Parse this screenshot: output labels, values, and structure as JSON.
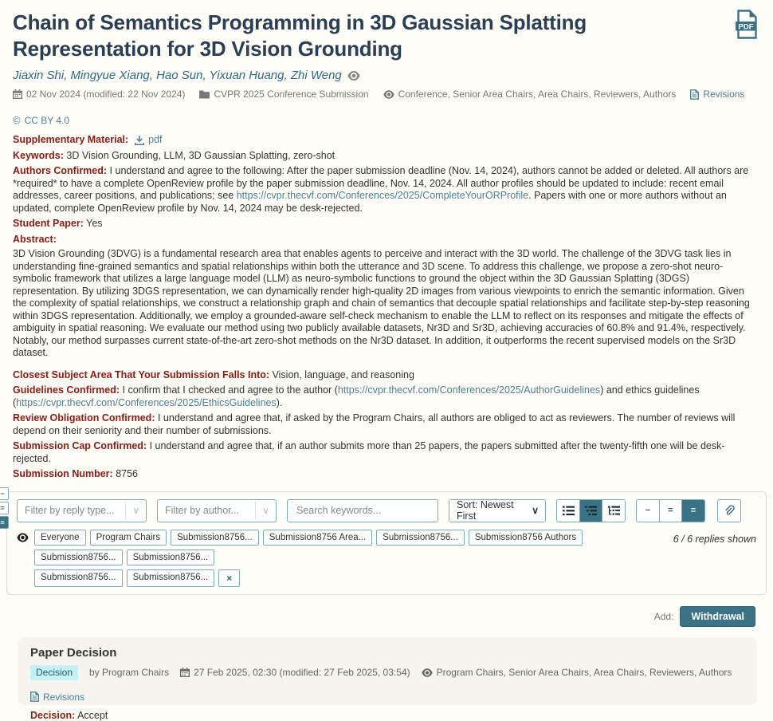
{
  "colors": {
    "accent": "#3b7386",
    "link": "#4d8093",
    "field_label": "#8c1b13",
    "badge_bg": "#c4f1f5",
    "card_bg": "#f5f4ef"
  },
  "icons": {
    "chevron_down": "∨",
    "close": "×",
    "density": [
      "−",
      "=",
      "≡"
    ],
    "pdf_text": "PDF"
  },
  "header": {
    "title": "Chain of Semantics Programming in 3D Gaussian Splatting Representation for 3D Vision Grounding",
    "authors": "Jiaxin Shi, Mingyue Xiang, Hao Sun, Yixuan Huang, Zhi Weng",
    "meta": {
      "date": "02 Nov 2024 (modified: 22 Nov 2024)",
      "venue": "CVPR 2025 Conference Submission",
      "visibility": "Conference, Senior Area Chairs, Area Chairs, Reviewers, Authors",
      "revisions_label": "Revisions",
      "license": "CC BY 4.0"
    }
  },
  "fields": {
    "supplementary": {
      "label": "Supplementary Material:",
      "link": "pdf"
    },
    "keywords": {
      "label": "Keywords:",
      "value": "3D Vision Grounding, LLM, 3D Gaussian Splatting, zero-shot"
    },
    "authors_confirmed": {
      "label": "Authors Confirmed:",
      "before": "I understand and agree to the following: After the paper submission deadline (Nov. 14, 2024), authors cannot be added or deleted. All authors are *required* to have a complete OpenReview profile by the paper submission deadline, Nov. 14, 2024. All author profiles should be updated to include: recent email addresses, career positions, and publications; see ",
      "link": "https://cvpr.thecvf.com/Conferences/2025/CompleteYourORProfile",
      "after": ". Papers with one or more authors without an updated, complete OpenReview profile by Nov. 14, 2024 may be desk-rejected."
    },
    "student_paper": {
      "label": "Student Paper:",
      "value": "Yes"
    },
    "abstract": {
      "label": "Abstract:",
      "value": "3D Vision Grounding (3DVG) is a fundamental research area that enables agents to perceive and interact with the 3D world. The challenge of the 3DVG task lies in understanding fine-grained semantics and spatial relationships within both the utterance and 3D scene. To address this challenge, we propose a zero-shot neuro-symbolic framework that utilizes a large language model (LLM) as neuro-symbolic functions to ground the object within the 3D Gaussian Splatting (3DGS) representation. By utilizing 3DGS representation, we can dynamically render high-quality 2D images from various viewpoints to enrich the semantic information. Given the complexity of spatial relationships, we construct a relationship graph and chain of semantics that decouple spatial relationships and facilitate step-by-step reasoning within 3DGS representation. Additionally, we employ a grounded-aware self-check mechanism to enable the LLM to reflect on its responses and mitigate the effects of ambiguity in spatial reasoning. We evaluate our method using two publicly available datasets, Nr3D and Sr3D, achieving accuracies of 60.8% and 91.4%, respectively. Notably, our method surpasses current state-of-the-art zero-shot methods on the Nr3D dataset. In addition, it outperforms the recent supervised models on the Sr3D dataset."
    },
    "subject_area": {
      "label": "Closest Subject Area That Your Submission Falls Into:",
      "value": "Vision, language, and reasoning"
    },
    "guidelines": {
      "label": "Guidelines Confirmed:",
      "before": "I confirm that I checked and agree to the author (",
      "link1": "https://cvpr.thecvf.com/Conferences/2025/AuthorGuidelines",
      "mid": ") and ethics guidelines (",
      "link2": "https://cvpr.thecvf.com/Conferences/2025/EthicsGuidelines",
      "after": ")."
    },
    "review_obligation": {
      "label": "Review Obligation Confirmed:",
      "value": "I understand and agree that, if asked by the Program Chairs, all authors are obliged to act as reviewers. The number of reviews will depend on their seniority and their number of submissions."
    },
    "submission_cap": {
      "label": "Submission Cap Confirmed:",
      "value": "I understand and agree that, if an author submits more than 25 papers, the papers submitted after the twenty-fifth one will be desk-rejected."
    },
    "submission_number": {
      "label": "Submission Number:",
      "value": "8756"
    }
  },
  "filters": {
    "reply_type_placeholder": "Filter by reply type...",
    "author_placeholder": "Filter by author...",
    "search_placeholder": "Search keywords...",
    "sort_value": "Sort: Newest First",
    "replies_shown": "6 / 6 replies shown",
    "tags_row1": [
      "Everyone",
      "Program Chairs",
      "Submission8756...",
      "Submission8756 Area...",
      "Submission8756...",
      "Submission8756 Authors",
      "Submission8756...",
      "Submission8756..."
    ],
    "tags_row2": [
      "Submission8756...",
      "Submission8756..."
    ]
  },
  "actions": {
    "add_label": "Add:",
    "withdrawal_label": "Withdrawal"
  },
  "decision_card": {
    "title": "Paper Decision",
    "badge": "Decision",
    "by": "by Program Chairs",
    "date": "27 Feb 2025, 02:30 (modified: 27 Feb 2025, 03:54)",
    "visibility": "Program Chairs, Senior Area Chairs, Area Chairs, Reviewers, Authors",
    "revisions_label": "Revisions",
    "decision_label": "Decision:",
    "decision_value": "Accept"
  }
}
